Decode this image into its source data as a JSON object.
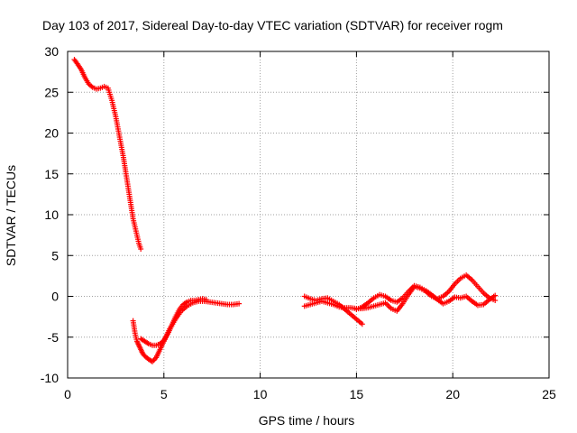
{
  "chart_data": {
    "type": "scatter",
    "title": "Day 103 of 2017, Sidereal Day-to-day VTEC variation (SDTVAR) for receiver rogm",
    "xlabel": "GPS time / hours",
    "ylabel": "SDTVAR / TECUs",
    "xlim": [
      0,
      25
    ],
    "ylim": [
      -10,
      30
    ],
    "xticks": [
      "0",
      "5",
      "10",
      "15",
      "20",
      "25"
    ],
    "yticks": [
      "-10",
      "-5",
      "0",
      "5",
      "10",
      "15",
      "20",
      "25",
      "30"
    ],
    "grid": true,
    "legend": "none",
    "marker": "plus",
    "color": "#ff0000",
    "series": [
      {
        "segments": [
          {
            "x": [
              0.35,
              0.5,
              0.7,
              0.9,
              1.1,
              1.3,
              1.5,
              1.7,
              1.9,
              2.1,
              2.3,
              2.5,
              2.7,
              2.9,
              3.0,
              3.1,
              3.2,
              3.3,
              3.4,
              3.5,
              3.6,
              3.7,
              3.8
            ],
            "y": [
              29.0,
              28.5,
              27.8,
              26.8,
              26.0,
              25.6,
              25.4,
              25.5,
              25.7,
              25.5,
              24.0,
              22.0,
              19.5,
              17.0,
              15.5,
              14.0,
              12.5,
              11.0,
              9.5,
              8.5,
              7.5,
              6.5,
              5.8
            ]
          },
          {
            "x": [
              3.4,
              3.5,
              3.6,
              3.7,
              3.8,
              3.9,
              4.0,
              4.2,
              4.4,
              4.6,
              4.8,
              5.0,
              5.3,
              5.6,
              5.9,
              6.2,
              6.5,
              6.8,
              7.1,
              7.4,
              7.7,
              8.0,
              8.3,
              8.6,
              8.9
            ],
            "y": [
              -3.0,
              -4.5,
              -5.5,
              -6.0,
              -6.5,
              -7.0,
              -7.3,
              -7.7,
              -8.0,
              -7.5,
              -6.5,
              -5.5,
              -4.0,
              -2.8,
              -1.8,
              -1.2,
              -0.8,
              -0.6,
              -0.6,
              -0.7,
              -0.8,
              -0.9,
              -1.0,
              -1.0,
              -0.9
            ]
          },
          {
            "x": [
              3.8,
              4.0,
              4.2,
              4.4,
              4.6,
              4.8,
              5.0,
              5.2,
              5.4,
              5.6,
              5.8,
              6.0,
              6.2,
              6.4,
              6.6,
              6.8,
              7.0,
              7.2
            ],
            "y": [
              -5.2,
              -5.5,
              -5.8,
              -6.0,
              -6.0,
              -5.8,
              -5.4,
              -4.6,
              -3.6,
              -2.5,
              -1.6,
              -1.0,
              -0.7,
              -0.5,
              -0.5,
              -0.4,
              -0.3,
              -0.4
            ]
          },
          {
            "x": [
              12.3,
              12.6,
              12.9,
              13.2,
              13.5,
              13.8,
              14.1,
              14.4,
              14.7,
              15.0,
              15.3
            ],
            "y": [
              0.0,
              -0.3,
              -0.5,
              -0.3,
              -0.2,
              -0.6,
              -1.0,
              -1.6,
              -2.2,
              -2.8,
              -3.4
            ]
          },
          {
            "x": [
              12.3,
              12.6,
              12.9,
              13.2,
              13.5,
              13.8,
              14.1,
              14.4,
              14.7,
              15.0,
              15.3,
              15.6,
              15.9,
              16.2,
              16.5,
              16.8,
              17.1,
              17.4,
              17.7,
              18.0,
              18.3,
              18.6,
              18.9,
              19.2,
              19.5,
              19.8,
              20.1,
              20.4,
              20.7,
              21.0,
              21.3,
              21.6,
              21.9,
              22.2
            ],
            "y": [
              -1.2,
              -1.0,
              -0.8,
              -0.6,
              -0.8,
              -1.0,
              -1.3,
              -1.4,
              -1.4,
              -1.5,
              -1.5,
              -1.4,
              -1.2,
              -1.0,
              -0.8,
              -1.5,
              -1.8,
              -0.9,
              0.2,
              1.2,
              1.0,
              0.6,
              0.0,
              -0.3,
              0.0,
              0.6,
              1.5,
              2.2,
              2.6,
              2.0,
              1.2,
              0.4,
              -0.2,
              -0.5
            ]
          },
          {
            "x": [
              15.0,
              15.3,
              15.6,
              15.9,
              16.2,
              16.5,
              16.8,
              17.1,
              17.4,
              17.7,
              18.0,
              18.3,
              18.6,
              18.9,
              19.2,
              19.5,
              19.8,
              20.1,
              20.4,
              20.7,
              21.0,
              21.3,
              21.6,
              21.9,
              22.2
            ],
            "y": [
              -1.6,
              -1.3,
              -0.8,
              -0.2,
              0.2,
              0.0,
              -0.5,
              -0.7,
              -0.2,
              0.6,
              1.3,
              1.1,
              0.7,
              0.2,
              -0.4,
              -0.9,
              -0.6,
              -0.1,
              -0.2,
              0.0,
              -0.6,
              -1.1,
              -1.0,
              -0.4,
              0.1
            ]
          }
        ]
      }
    ]
  }
}
